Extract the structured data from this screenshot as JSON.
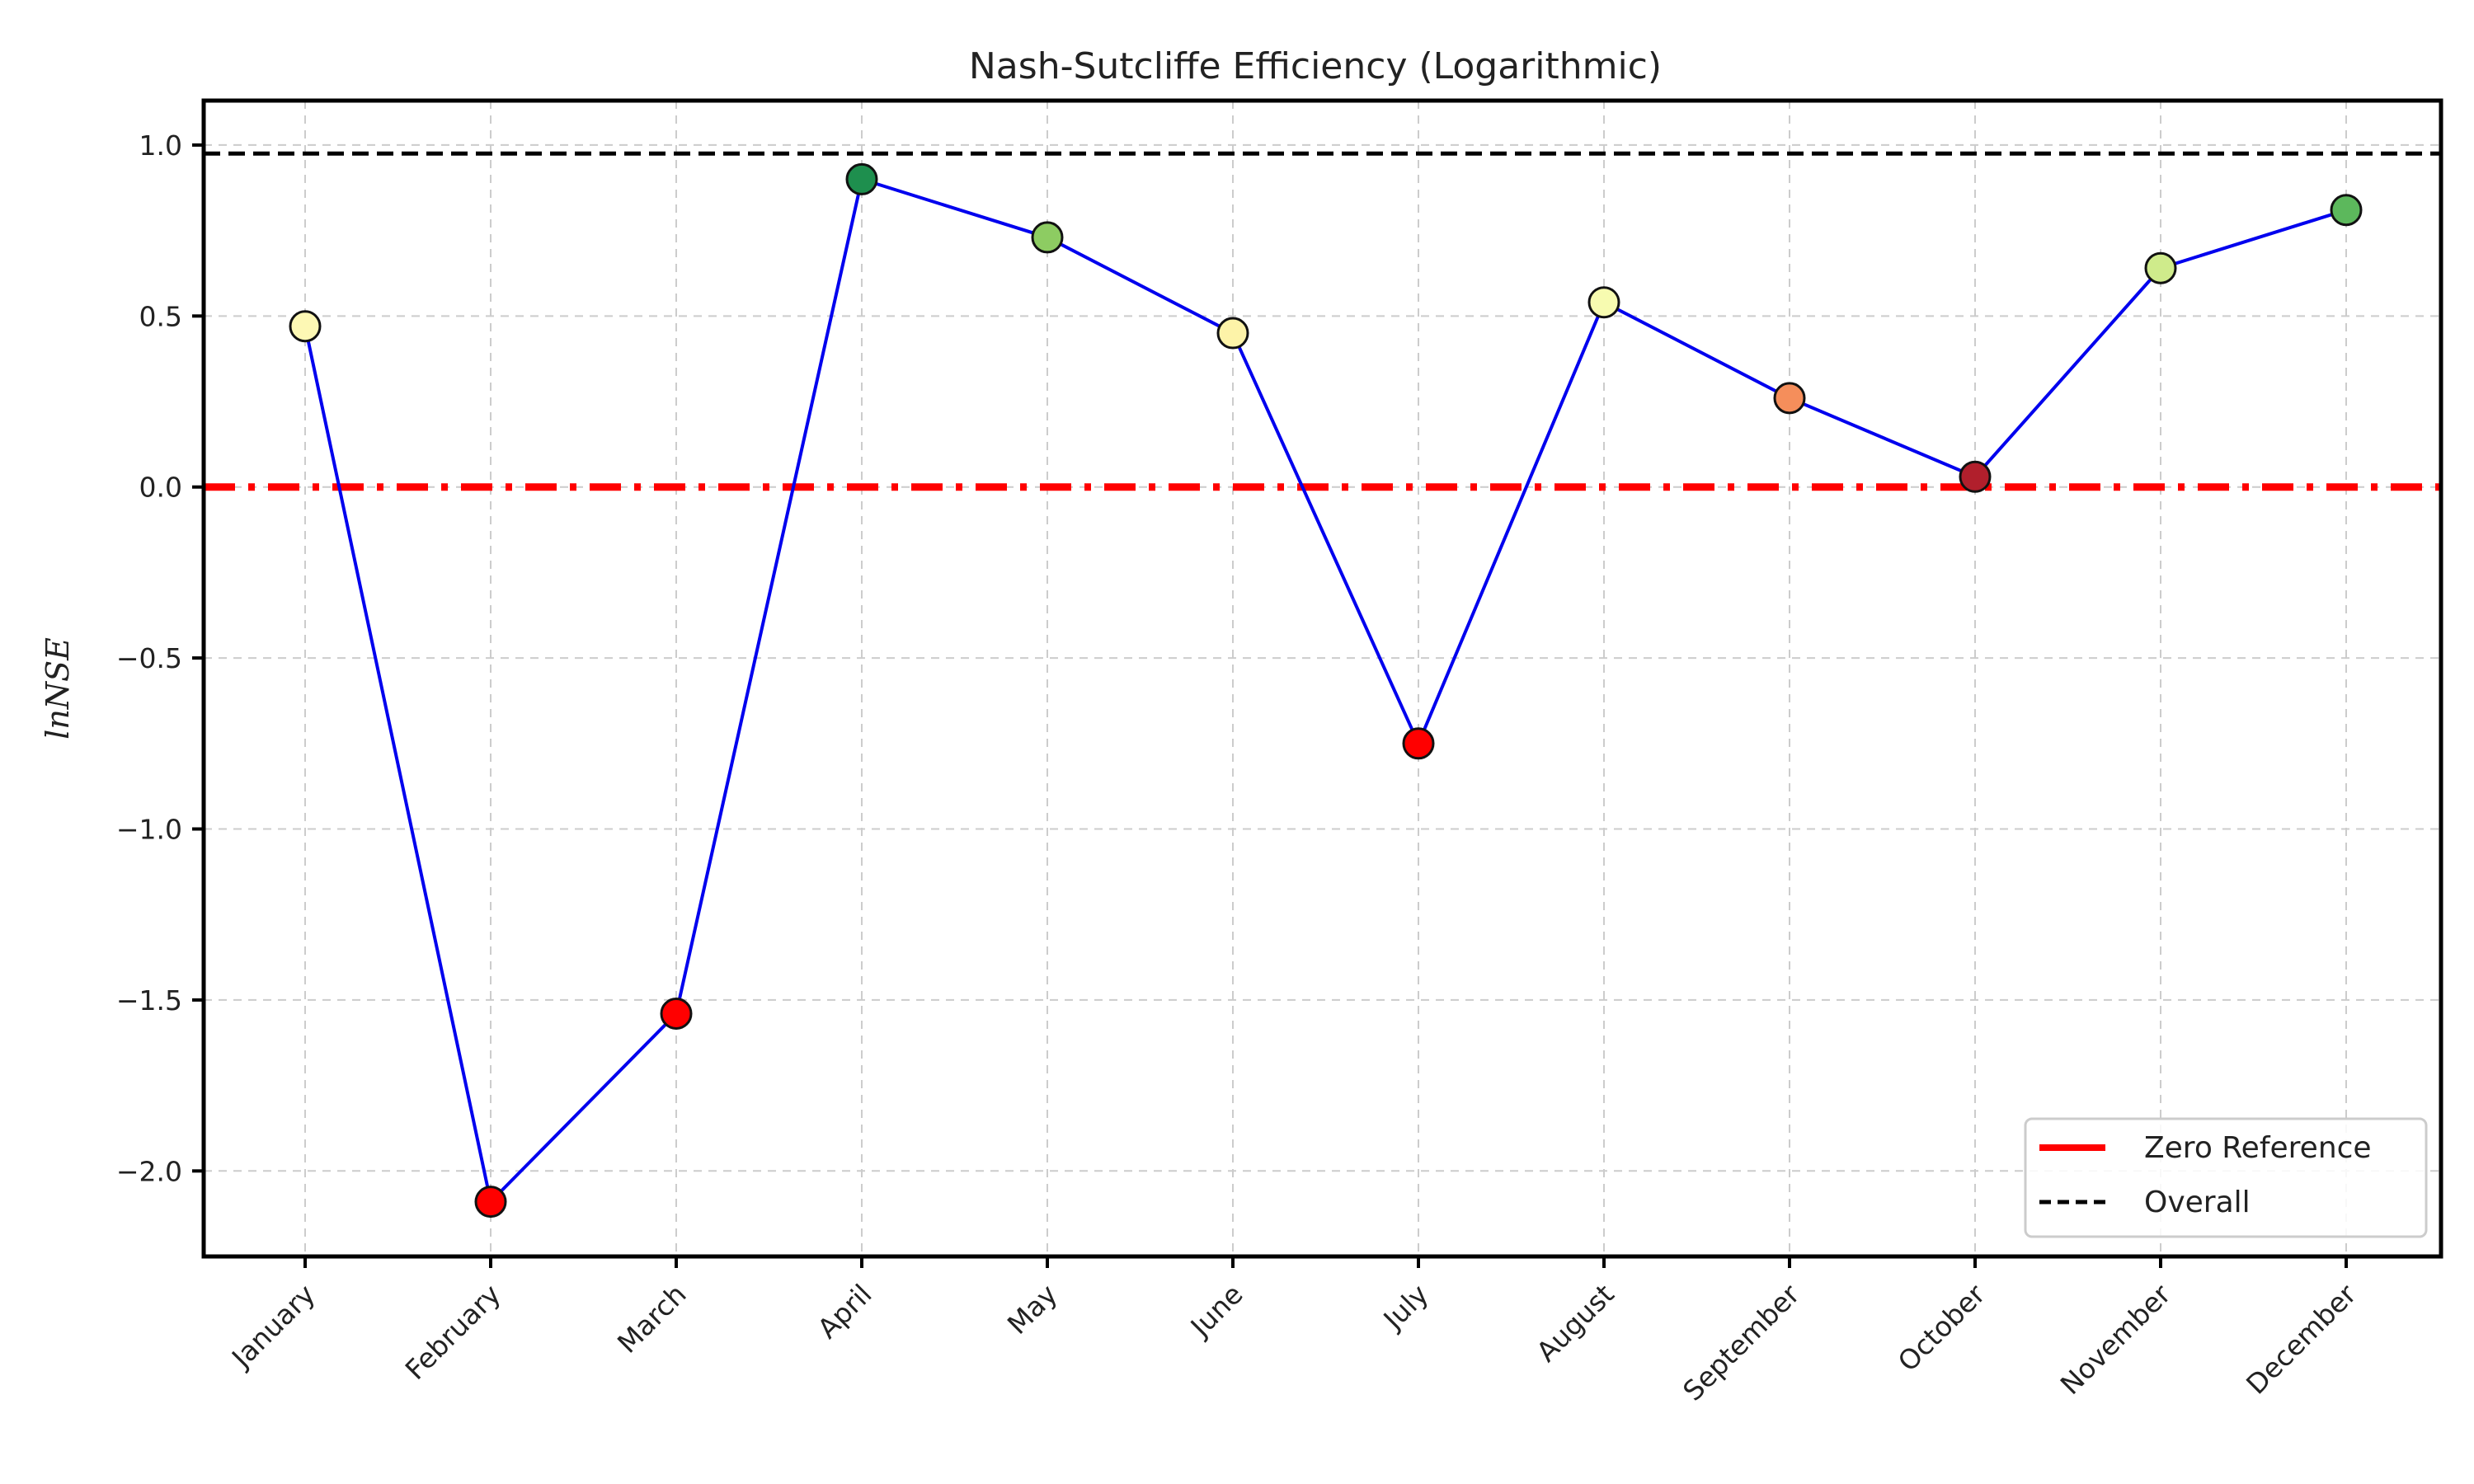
{
  "chart_data": {
    "type": "line",
    "title": "Nash-Sutcliffe Efficiency (Logarithmic)",
    "xlabel": "",
    "ylabel": "lnNSE",
    "categories": [
      "January",
      "February",
      "March",
      "April",
      "May",
      "June",
      "July",
      "August",
      "September",
      "October",
      "November",
      "December"
    ],
    "series": [
      {
        "values": [
          0.47,
          -2.09,
          -1.54,
          0.9,
          0.73,
          0.45,
          -0.75,
          0.54,
          0.26,
          0.03,
          0.64,
          0.81
        ],
        "line_color": "#0000ee",
        "marker_colors": [
          "#fdf8b4",
          "#ff0000",
          "#ff0000",
          "#1e8f4e",
          "#8dcc62",
          "#fdf3a8",
          "#ff0000",
          "#f7fbb0",
          "#f58e5b",
          "#b11f2c",
          "#cfeb8b",
          "#5cb85c"
        ]
      }
    ],
    "reference_lines": [
      {
        "name": "Zero Reference",
        "value": 0.0,
        "color": "#ff0000",
        "style": "dashdot"
      },
      {
        "name": "Overall",
        "value": 0.975,
        "color": "#000000",
        "style": "dashed"
      }
    ],
    "yticks": [
      1.0,
      0.5,
      0.0,
      -0.5,
      -1.0,
      -1.5,
      -2.0
    ],
    "ytick_labels": [
      "1.0",
      "0.5",
      "0.0",
      "−0.5",
      "−1.0",
      "−1.5",
      "−2.0"
    ],
    "ylim": [
      -2.25,
      1.13
    ],
    "grid": true,
    "legend_placement": "lower-right"
  }
}
